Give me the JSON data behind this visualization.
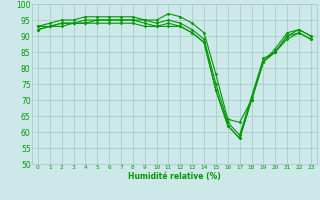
{
  "xlabel": "Humidité relative (%)",
  "bg_color": "#cce8e8",
  "grid_color": "#aacccc",
  "line_color": "#009900",
  "ylim": [
    50,
    100
  ],
  "yticks": [
    50,
    55,
    60,
    65,
    70,
    75,
    80,
    85,
    90,
    95,
    100
  ],
  "xticks": [
    0,
    1,
    2,
    3,
    4,
    5,
    6,
    7,
    8,
    9,
    10,
    11,
    12,
    13,
    14,
    15,
    16,
    17,
    18,
    19,
    20,
    21,
    22,
    23
  ],
  "series": [
    [
      93,
      94,
      95,
      95,
      96,
      96,
      96,
      96,
      96,
      95,
      95,
      97,
      96,
      94,
      91,
      78,
      64,
      63,
      70,
      82,
      86,
      91,
      92,
      90
    ],
    [
      93,
      93,
      94,
      94,
      95,
      95,
      95,
      95,
      95,
      95,
      94,
      95,
      94,
      92,
      89,
      75,
      63,
      59,
      71,
      83,
      85,
      90,
      92,
      90
    ],
    [
      92,
      93,
      94,
      94,
      94,
      95,
      95,
      95,
      95,
      94,
      93,
      94,
      93,
      91,
      88,
      73,
      62,
      58,
      70,
      82,
      85,
      90,
      91,
      89
    ],
    [
      92,
      93,
      93,
      94,
      94,
      94,
      94,
      94,
      94,
      93,
      93,
      93,
      93,
      91,
      88,
      73,
      62,
      58,
      70,
      82,
      85,
      89,
      91,
      89
    ]
  ]
}
